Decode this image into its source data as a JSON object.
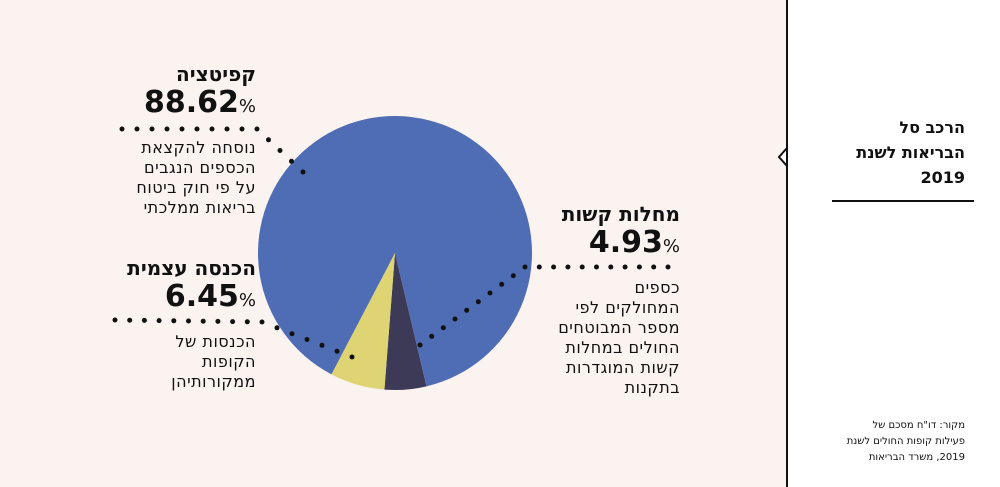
{
  "chart_data": {
    "type": "pie",
    "title": "הרכב סל הבריאות לשנת 2019",
    "slices": [
      {
        "name": "קפיטציה",
        "value": 88.62,
        "description": "נוסחה להקצאת הכספים הנגבים על פי חוק ביטוח בריאות ממלכתי",
        "color": "#4f6db4"
      },
      {
        "name": "מחלות קשות",
        "value": 4.93,
        "description": "כספים המחולקים לפי מספר המבוטחים החולים במחלות קשות המוגדרות בתקנות",
        "color": "#3d3a58"
      },
      {
        "name": "הכנסה עצמית",
        "value": 6.45,
        "description": "הכנסות של הקופות ממקורותיהן",
        "color": "#dfd473"
      }
    ],
    "percent_sign": "%"
  },
  "sidebar": {
    "title_lines": [
      "הרכב סל",
      "הבריאות לשנת",
      "2019"
    ],
    "source_lines": [
      "מקור: דו\"ח מסכם של",
      "פעילות קופות החולים לשנת",
      "2019, משרד הבריאות"
    ]
  },
  "labels": {
    "capitation": {
      "name": "קפיטציה",
      "value": "88.62",
      "desc_lines": [
        "נוסחה להקצאת",
        "הכספים הנגבים",
        "על פי חוק ביטוח",
        "בריאות ממלכתי"
      ]
    },
    "severe": {
      "name": "מחלות קשות",
      "value": "4.93",
      "desc_lines": [
        "כספים",
        "המחולקים לפי",
        "מספר המבוטחים",
        "החולים במחלות",
        "קשות המוגדרות",
        "בתקנות"
      ]
    },
    "self_income": {
      "name": "הכנסה עצמית",
      "value": "6.45",
      "desc_lines": [
        "הכנסות של",
        "הקופות",
        "ממקורותיהן"
      ]
    }
  }
}
